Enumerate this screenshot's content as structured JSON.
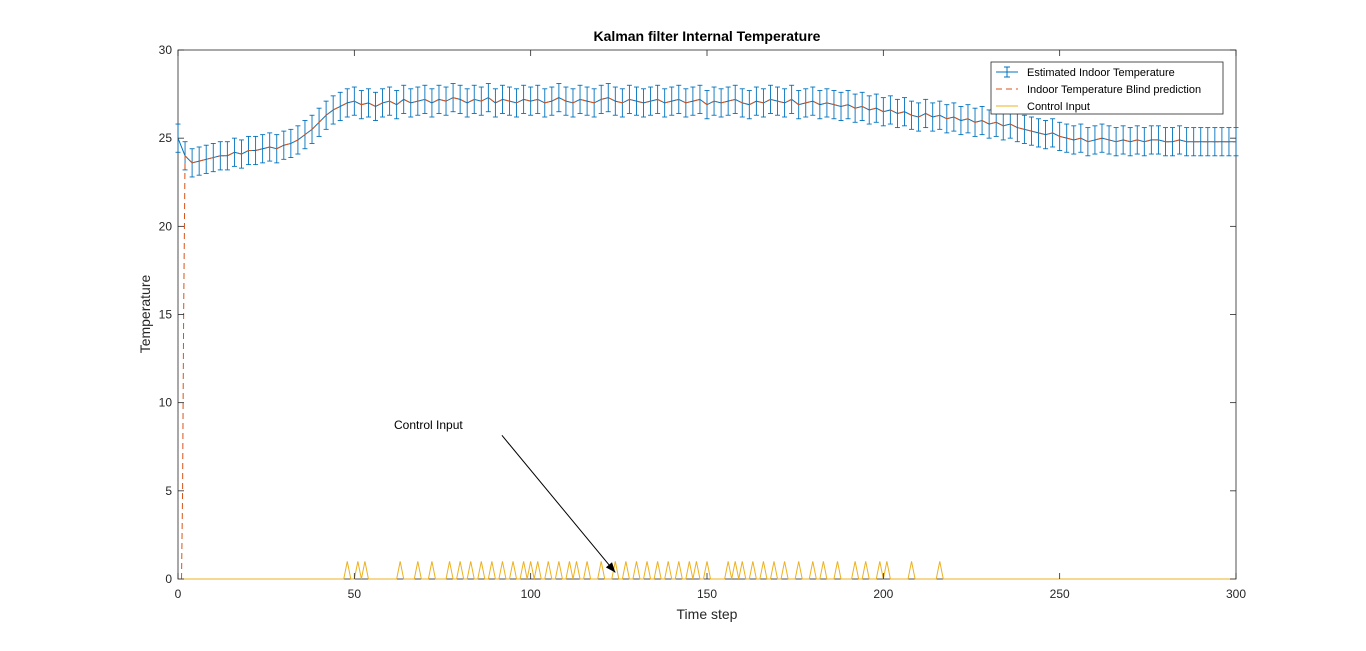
{
  "chart_data": {
    "type": "line",
    "title": "Kalman filter Internal Temperature",
    "xlabel": "Time step",
    "ylabel": "Temperature",
    "xlim": [
      0,
      300
    ],
    "ylim": [
      0,
      30
    ],
    "xticks": [
      0,
      50,
      100,
      150,
      200,
      250,
      300
    ],
    "yticks": [
      0,
      5,
      10,
      15,
      20,
      25,
      30
    ],
    "grid": false,
    "legend_position": "top-right",
    "legend": [
      "Estimated Indoor Temperature",
      "Indoor Temperature Blind prediction",
      "Control Input"
    ],
    "annotation": {
      "text": "Control Input",
      "text_at": [
        72,
        8.6
      ],
      "arrow_to": [
        124,
        0.2
      ]
    },
    "series": [
      {
        "name": "Estimated Indoor Temperature",
        "style": "errorbar",
        "color": "#0072bd",
        "error_halfwidth": 0.8,
        "x_step": 2,
        "x_start": 0,
        "values": [
          25.0,
          24.0,
          23.6,
          23.7,
          23.8,
          23.9,
          24.0,
          24.0,
          24.2,
          24.1,
          24.3,
          24.3,
          24.4,
          24.5,
          24.4,
          24.6,
          24.7,
          24.9,
          25.2,
          25.5,
          25.9,
          26.3,
          26.6,
          26.8,
          27.0,
          27.1,
          26.9,
          27.0,
          26.8,
          27.0,
          27.1,
          26.9,
          27.2,
          27.0,
          27.1,
          27.2,
          27.0,
          27.2,
          27.1,
          27.3,
          27.2,
          27.0,
          27.2,
          27.1,
          27.3,
          27.0,
          27.2,
          27.1,
          27.0,
          27.2,
          27.1,
          27.2,
          27.0,
          27.1,
          27.3,
          27.1,
          27.0,
          27.2,
          27.1,
          27.0,
          27.2,
          27.3,
          27.1,
          27.0,
          27.2,
          27.1,
          27.0,
          27.1,
          27.2,
          27.0,
          27.1,
          27.2,
          27.0,
          27.1,
          27.2,
          26.9,
          27.1,
          27.0,
          27.1,
          27.2,
          27.0,
          26.9,
          27.1,
          27.0,
          27.2,
          27.1,
          27.0,
          27.2,
          26.9,
          27.0,
          27.1,
          26.9,
          27.0,
          26.9,
          26.8,
          26.9,
          26.7,
          26.8,
          26.6,
          26.7,
          26.5,
          26.6,
          26.4,
          26.5,
          26.3,
          26.2,
          26.4,
          26.2,
          26.3,
          26.1,
          26.2,
          26.0,
          26.1,
          25.9,
          26.0,
          25.8,
          25.9,
          25.7,
          25.8,
          25.6,
          25.5,
          25.4,
          25.3,
          25.2,
          25.3,
          25.1,
          25.0,
          24.9,
          25.0,
          24.8,
          24.9,
          25.0,
          24.9,
          24.8,
          24.9,
          24.8,
          24.9,
          24.8,
          24.9,
          24.9,
          24.8,
          24.8,
          24.9,
          24.8,
          24.8,
          24.8,
          24.8,
          24.8,
          24.8,
          24.8,
          24.8
        ]
      },
      {
        "name": "Indoor Temperature Blind prediction",
        "style": "dashed",
        "color": "#d95319",
        "note": "starts at 0 at x=1 and rises to the estimate by x=2"
      },
      {
        "name": "Control Input",
        "style": "solid",
        "color": "#edb120",
        "baseline": 0,
        "pulse_height": 1,
        "pulses_x": [
          48,
          51,
          53,
          63,
          68,
          72,
          77,
          80,
          83,
          86,
          89,
          92,
          95,
          98,
          100,
          102,
          105,
          108,
          111,
          113,
          116,
          120,
          124,
          127,
          130,
          133,
          136,
          139,
          142,
          145,
          147,
          150,
          156,
          158,
          160,
          163,
          166,
          169,
          172,
          176,
          180,
          183,
          187,
          192,
          195,
          199,
          201,
          208,
          216
        ]
      }
    ]
  }
}
